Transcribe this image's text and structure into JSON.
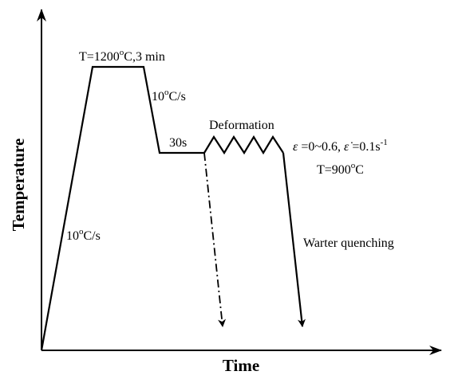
{
  "axes": {
    "x_label": "Time",
    "y_label": "Temperature"
  },
  "annotations": {
    "heating_rate": {
      "base": "10",
      "sup": "o",
      "unit": "C/s"
    },
    "soak": {
      "prefix": "T=1200",
      "sup": "o",
      "suffix": "C,3 min"
    },
    "cooling_rate": {
      "base": "10",
      "sup": "o",
      "unit": "C/s"
    },
    "hold": "30s",
    "deformation": "Deformation",
    "strain": {
      "eps": "ε",
      "eq1": " =0~0.6, ",
      "eps_dot": "ε̇",
      "eq2": " =0.1s",
      "sup": "-1"
    },
    "deform_temp": {
      "prefix": "T=900",
      "sup": "o",
      "suffix": "C"
    },
    "quench": "Warter quenching"
  }
}
